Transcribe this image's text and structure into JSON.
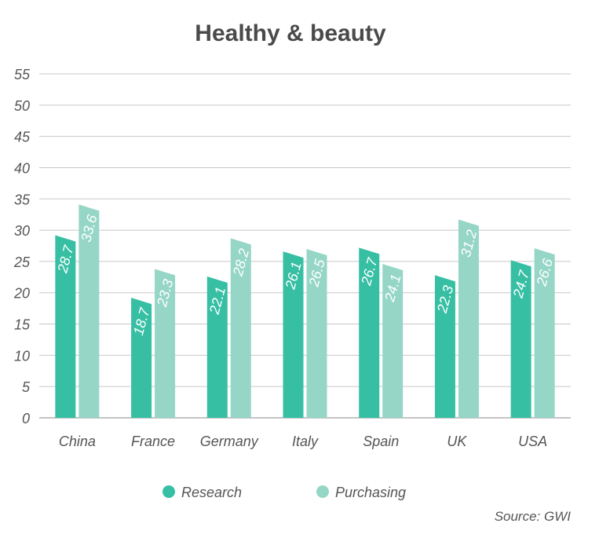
{
  "chart_data": {
    "type": "bar",
    "title": "Healthy & beauty",
    "categories": [
      "China",
      "France",
      "Germany",
      "Italy",
      "Spain",
      "UK",
      "USA"
    ],
    "series": [
      {
        "name": "Research",
        "values": [
          28.7,
          18.7,
          22.1,
          26.1,
          26.7,
          22.3,
          24.7
        ]
      },
      {
        "name": "Purchasing",
        "values": [
          33.6,
          23.3,
          28.2,
          26.5,
          24.1,
          31.2,
          26.6
        ]
      }
    ],
    "yticks": [
      "0",
      "5",
      "10",
      "15",
      "20",
      "25",
      "30",
      "35",
      "40",
      "45",
      "50",
      "55"
    ],
    "ylim": [
      0,
      55
    ],
    "xlabel": "",
    "ylabel": "",
    "grid": true,
    "legend_position": "bottom",
    "colors": {
      "Research": "#37bfa4",
      "Purchasing": "#96d6c6"
    },
    "source": "Source: GWI"
  }
}
